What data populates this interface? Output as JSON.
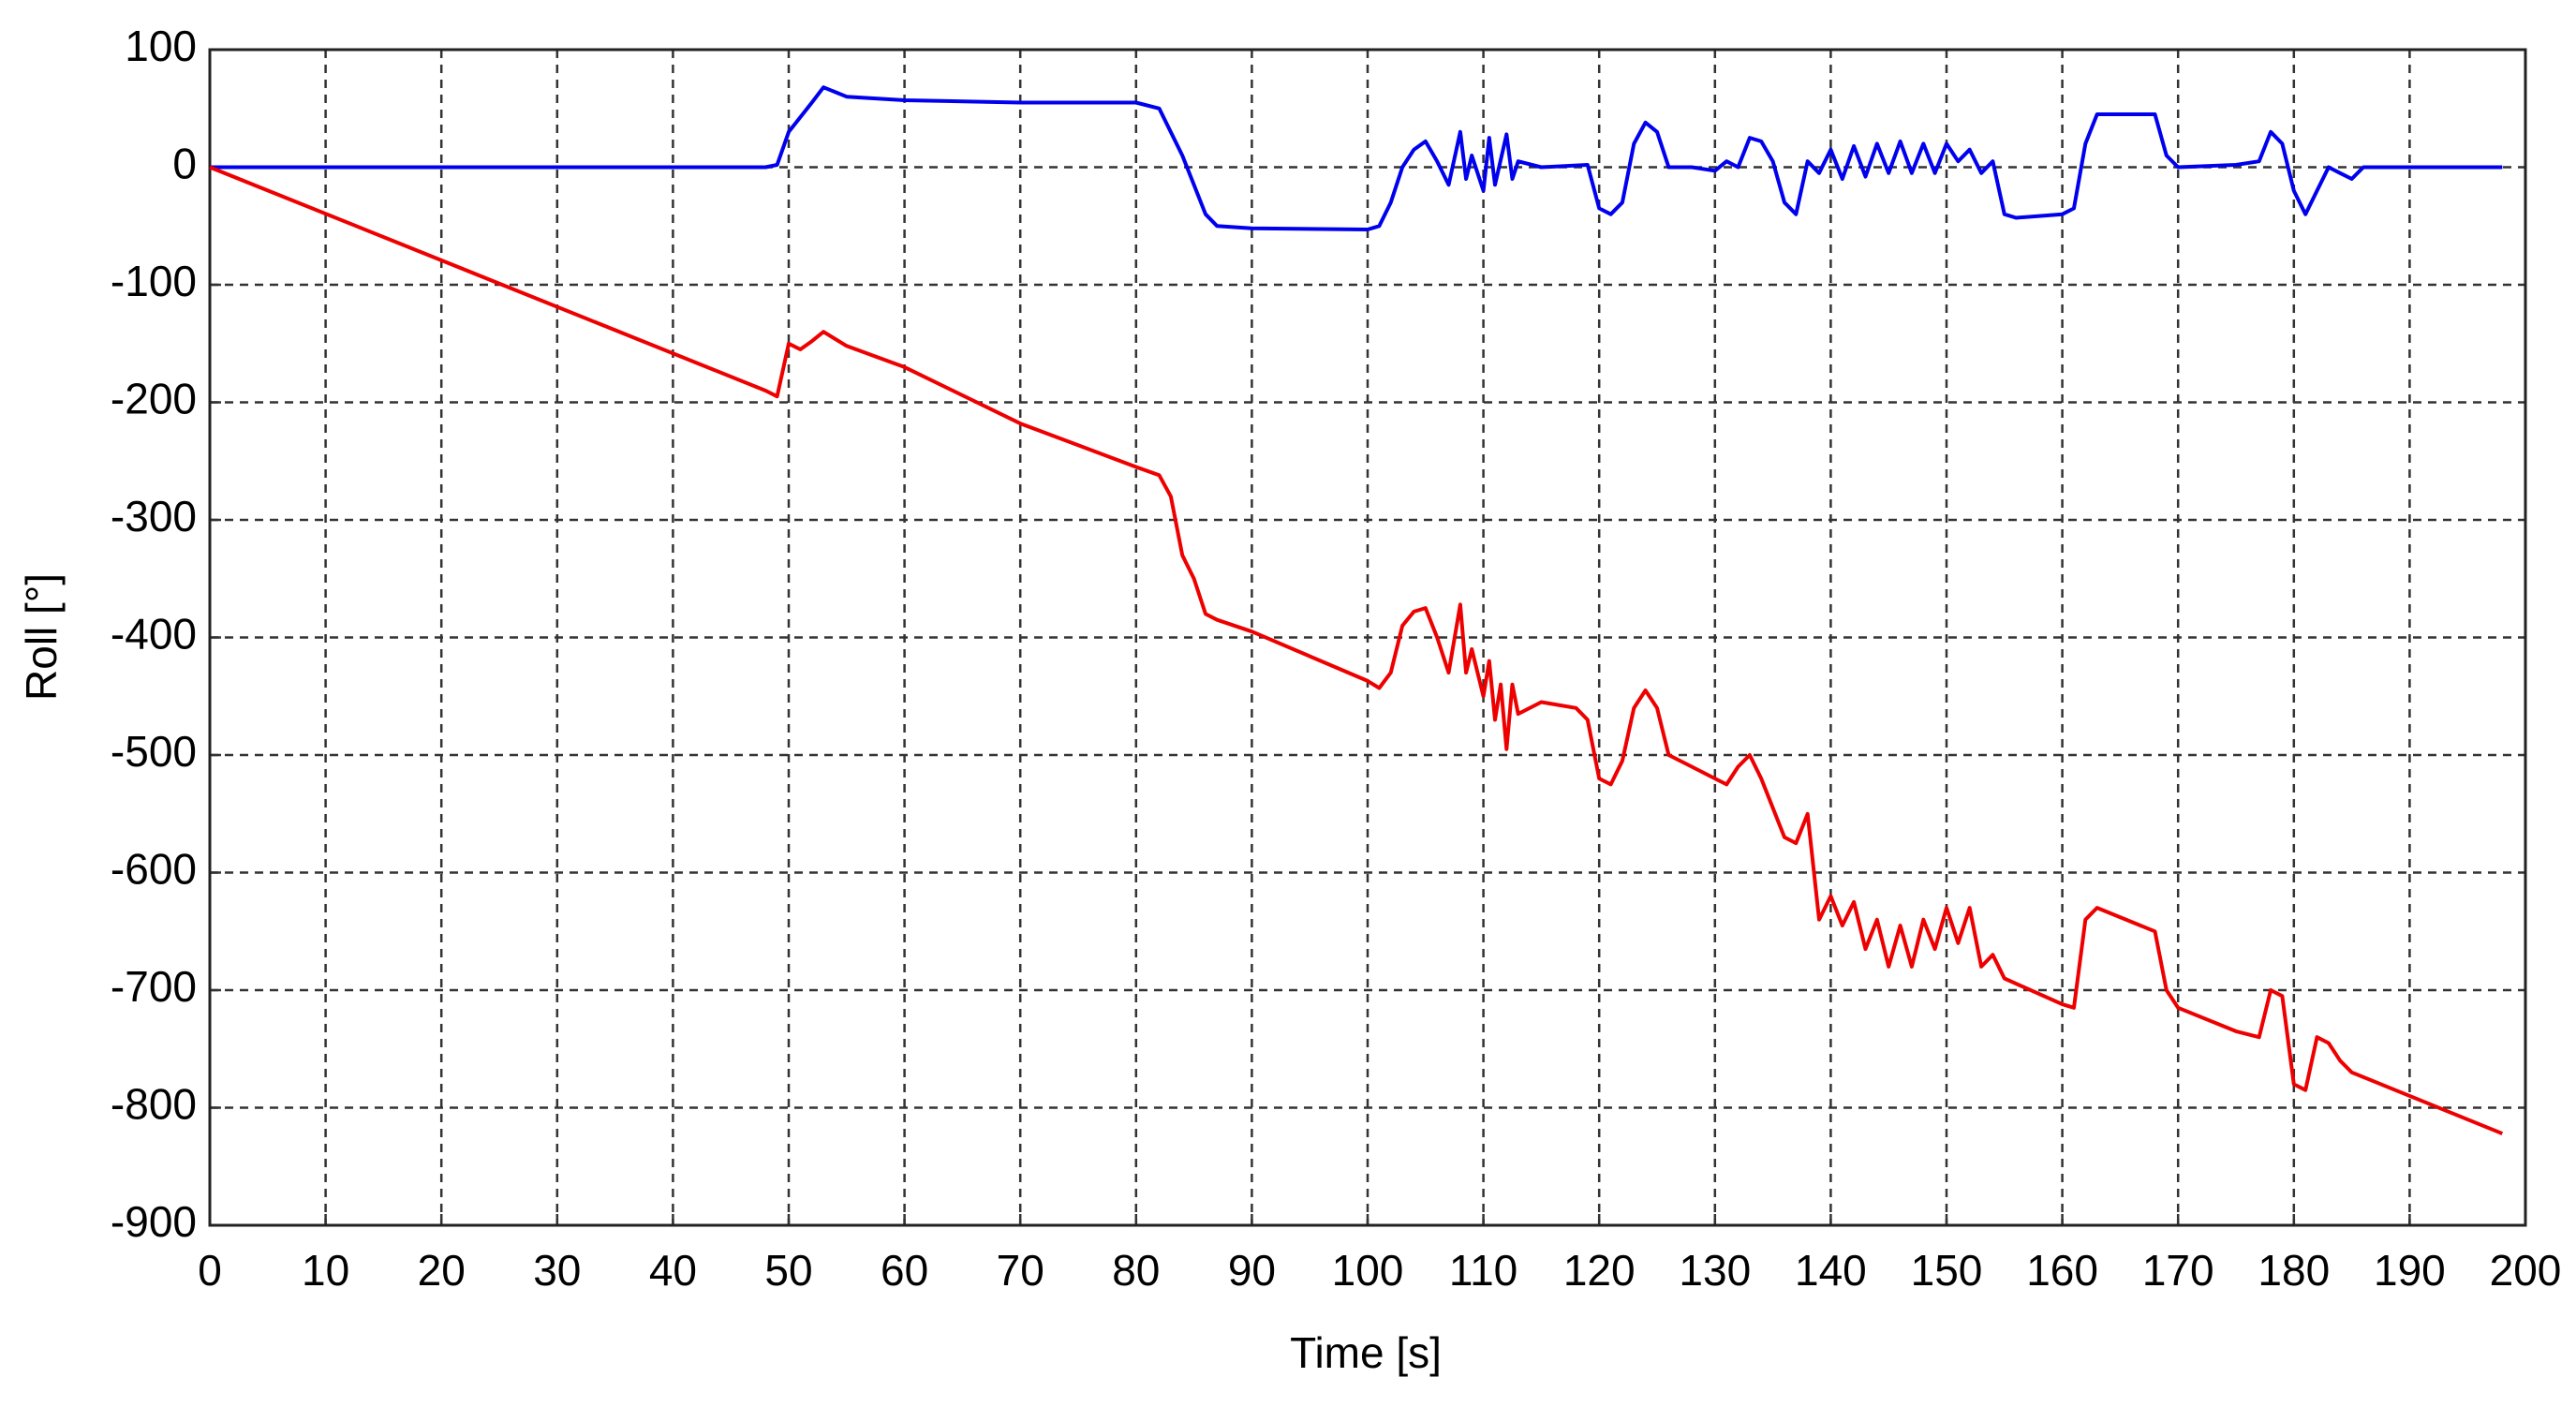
{
  "chart_data": {
    "type": "line",
    "xlabel": "Time [s]",
    "ylabel": "Roll [°]",
    "xlim": [
      0,
      200
    ],
    "xticks": [
      0,
      10,
      20,
      30,
      40,
      50,
      60,
      70,
      80,
      90,
      100,
      110,
      120,
      130,
      140,
      150,
      160,
      170,
      180,
      190,
      200
    ],
    "ylim": [
      -900,
      100
    ],
    "yticks": [
      100,
      0,
      -100,
      -200,
      -300,
      -400,
      -500,
      -600,
      -700,
      -800,
      -900
    ],
    "grid": true,
    "series": [
      {
        "color": "#0000ee",
        "x": [
          0,
          48,
          49,
          50,
          52,
          53,
          55,
          60,
          70,
          80,
          82,
          84,
          86,
          87,
          90,
          100,
          101,
          102,
          103,
          104,
          105,
          106,
          107,
          108,
          108.5,
          109,
          110,
          110.5,
          111,
          112,
          112.5,
          113,
          115,
          119,
          120,
          121,
          122,
          123,
          124,
          125,
          126,
          128,
          130,
          131,
          132,
          133,
          134,
          135,
          136,
          137,
          138,
          139,
          140,
          141,
          142,
          143,
          144,
          145,
          146,
          147,
          148,
          149,
          150,
          151,
          152,
          153,
          154,
          155,
          156,
          160,
          161,
          162,
          163,
          168,
          169,
          170,
          175,
          177,
          178,
          179,
          180,
          181,
          182,
          183,
          184,
          185,
          186,
          190,
          198
        ],
        "values": [
          0,
          0,
          2,
          30,
          55,
          68,
          60,
          57,
          55,
          55,
          50,
          10,
          -40,
          -50,
          -52,
          -53,
          -50,
          -30,
          0,
          15,
          22,
          5,
          -15,
          30,
          -10,
          10,
          -20,
          25,
          -15,
          28,
          -10,
          5,
          0,
          2,
          -35,
          -40,
          -30,
          20,
          38,
          30,
          0,
          0,
          -3,
          5,
          0,
          25,
          22,
          5,
          -30,
          -40,
          5,
          -5,
          15,
          -10,
          18,
          -8,
          20,
          -5,
          22,
          -5,
          20,
          -5,
          20,
          5,
          15,
          -5,
          5,
          -40,
          -43,
          -40,
          -35,
          20,
          45,
          45,
          10,
          0,
          2,
          5,
          30,
          20,
          -20,
          -40,
          -20,
          0,
          -5,
          -10,
          0,
          0,
          0
        ]
      },
      {
        "color": "#ee0000",
        "x": [
          0,
          48,
          49,
          50,
          51,
          52,
          53,
          55,
          60,
          70,
          80,
          82,
          83,
          84,
          85,
          86,
          87,
          90,
          100,
          101,
          102,
          103,
          104,
          105,
          106,
          107,
          108,
          108.5,
          109,
          110,
          110.5,
          111,
          111.5,
          112,
          112.5,
          113,
          115,
          118,
          119,
          120,
          121,
          122,
          123,
          124,
          125,
          126,
          128,
          130,
          131,
          132,
          133,
          134,
          135,
          136,
          137,
          138,
          139,
          140,
          141,
          142,
          143,
          144,
          145,
          146,
          147,
          148,
          149,
          150,
          151,
          152,
          153,
          154,
          155,
          160,
          161,
          162,
          163,
          168,
          169,
          170,
          175,
          177,
          178,
          179,
          180,
          181,
          182,
          183,
          184,
          185,
          198
        ],
        "values": [
          0,
          -190,
          -195,
          -150,
          -155,
          -148,
          -140,
          -152,
          -170,
          -218,
          -255,
          -262,
          -280,
          -330,
          -350,
          -380,
          -385,
          -395,
          -437,
          -443,
          -430,
          -390,
          -378,
          -375,
          -400,
          -430,
          -372,
          -430,
          -410,
          -450,
          -420,
          -470,
          -440,
          -495,
          -440,
          -465,
          -455,
          -460,
          -470,
          -520,
          -525,
          -505,
          -460,
          -445,
          -460,
          -500,
          -510,
          -520,
          -525,
          -510,
          -500,
          -520,
          -545,
          -570,
          -575,
          -550,
          -640,
          -620,
          -645,
          -625,
          -665,
          -640,
          -680,
          -645,
          -680,
          -640,
          -665,
          -630,
          -660,
          -630,
          -680,
          -670,
          -690,
          -712,
          -715,
          -640,
          -630,
          -650,
          -700,
          -715,
          -735,
          -740,
          -700,
          -705,
          -780,
          -785,
          -740,
          -745,
          -760,
          -770,
          -822
        ]
      }
    ]
  }
}
